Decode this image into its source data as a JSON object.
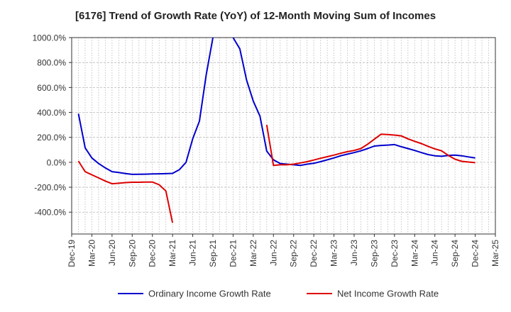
{
  "chart_data": {
    "type": "line",
    "title": "[6176]  Trend of Growth Rate (YoY) of 12-Month Moving Sum of Incomes",
    "xlabel": "",
    "ylabel": "",
    "ylim": [
      -575,
      1000
    ],
    "grid": true,
    "legend_position": "bottom",
    "y_ticks": [
      1000,
      800,
      600,
      400,
      200,
      0,
      -200,
      -400
    ],
    "y_tick_labels": [
      "1000.0%",
      "800.0%",
      "600.0%",
      "400.0%",
      "200.0%",
      "0.0%",
      "-200.0%",
      "-400.0%"
    ],
    "x_tick_labels": [
      "Dec-19",
      "Mar-20",
      "Jun-20",
      "Sep-20",
      "Dec-20",
      "Mar-21",
      "Jun-21",
      "Sep-21",
      "Dec-21",
      "Mar-22",
      "Jun-22",
      "Sep-22",
      "Dec-22",
      "Mar-23",
      "Jun-23",
      "Sep-23",
      "Dec-23",
      "Mar-24",
      "Jun-24",
      "Sep-24",
      "Dec-24",
      "Mar-25"
    ],
    "x_month_range": [
      "2019-12",
      "2025-03"
    ],
    "series": [
      {
        "name": "Ordinary Income Growth Rate",
        "color": "#0000cc",
        "points": [
          [
            "2020-01",
            390
          ],
          [
            "2020-02",
            115
          ],
          [
            "2020-03",
            35
          ],
          [
            "2020-04",
            -10
          ],
          [
            "2020-05",
            -45
          ],
          [
            "2020-06",
            -75
          ],
          [
            "2020-07",
            -82
          ],
          [
            "2020-08",
            -90
          ],
          [
            "2020-09",
            -97
          ],
          [
            "2020-10",
            -96
          ],
          [
            "2020-11",
            -95
          ],
          [
            "2020-12",
            -93
          ],
          [
            "2021-01",
            -92
          ],
          [
            "2021-02",
            -91
          ],
          [
            "2021-03",
            -89
          ],
          [
            "2021-04",
            -60
          ],
          [
            "2021-05",
            0
          ],
          [
            "2021-06",
            190
          ],
          [
            "2021-07",
            330
          ],
          [
            "2021-08",
            700
          ],
          [
            "2021-09",
            1000
          ],
          null,
          [
            "2021-12",
            1000
          ],
          [
            "2022-01",
            910
          ],
          [
            "2022-02",
            660
          ],
          [
            "2022-03",
            490
          ],
          [
            "2022-04",
            370
          ],
          [
            "2022-05",
            90
          ],
          [
            "2022-06",
            20
          ],
          [
            "2022-07",
            -10
          ],
          [
            "2022-08",
            -15
          ],
          [
            "2022-09",
            -20
          ],
          [
            "2022-10",
            -25
          ],
          [
            "2022-11",
            -15
          ],
          [
            "2022-12",
            -8
          ],
          [
            "2023-01",
            5
          ],
          [
            "2023-02",
            20
          ],
          [
            "2023-03",
            35
          ],
          [
            "2023-04",
            52
          ],
          [
            "2023-05",
            65
          ],
          [
            "2023-06",
            78
          ],
          [
            "2023-07",
            92
          ],
          [
            "2023-08",
            110
          ],
          [
            "2023-09",
            130
          ],
          [
            "2023-10",
            135
          ],
          [
            "2023-11",
            138
          ],
          [
            "2023-12",
            142
          ],
          [
            "2024-01",
            125
          ],
          [
            "2024-02",
            110
          ],
          [
            "2024-03",
            95
          ],
          [
            "2024-04",
            78
          ],
          [
            "2024-05",
            62
          ],
          [
            "2024-06",
            52
          ],
          [
            "2024-07",
            48
          ],
          [
            "2024-08",
            55
          ],
          [
            "2024-09",
            58
          ],
          [
            "2024-10",
            52
          ],
          [
            "2024-11",
            43
          ],
          [
            "2024-12",
            35
          ]
        ]
      },
      {
        "name": "Net Income Growth Rate",
        "color": "#dd0000",
        "points": [
          [
            "2020-01",
            10
          ],
          [
            "2020-02",
            -75
          ],
          [
            "2020-03",
            -100
          ],
          [
            "2020-04",
            -125
          ],
          [
            "2020-05",
            -150
          ],
          [
            "2020-06",
            -172
          ],
          [
            "2020-07",
            -168
          ],
          [
            "2020-08",
            -163
          ],
          [
            "2020-09",
            -160
          ],
          [
            "2020-10",
            -160
          ],
          [
            "2020-11",
            -158
          ],
          [
            "2020-12",
            -158
          ],
          [
            "2021-01",
            -180
          ],
          [
            "2021-02",
            -230
          ],
          [
            "2021-03",
            -485
          ],
          null,
          [
            "2022-05",
            300
          ],
          [
            "2022-06",
            -25
          ],
          [
            "2022-07",
            -20
          ],
          [
            "2022-08",
            -20
          ],
          [
            "2022-09",
            -15
          ],
          [
            "2022-10",
            -5
          ],
          [
            "2022-11",
            5
          ],
          [
            "2022-12",
            18
          ],
          [
            "2023-01",
            32
          ],
          [
            "2023-02",
            45
          ],
          [
            "2023-03",
            58
          ],
          [
            "2023-04",
            72
          ],
          [
            "2023-05",
            85
          ],
          [
            "2023-06",
            95
          ],
          [
            "2023-07",
            110
          ],
          [
            "2023-08",
            145
          ],
          [
            "2023-09",
            185
          ],
          [
            "2023-10",
            225
          ],
          [
            "2023-11",
            222
          ],
          [
            "2023-12",
            218
          ],
          [
            "2024-01",
            212
          ],
          [
            "2024-02",
            188
          ],
          [
            "2024-03",
            168
          ],
          [
            "2024-04",
            150
          ],
          [
            "2024-05",
            128
          ],
          [
            "2024-06",
            108
          ],
          [
            "2024-07",
            92
          ],
          [
            "2024-08",
            55
          ],
          [
            "2024-09",
            25
          ],
          [
            "2024-10",
            8
          ],
          [
            "2024-11",
            2
          ],
          [
            "2024-12",
            -3
          ]
        ]
      }
    ]
  }
}
